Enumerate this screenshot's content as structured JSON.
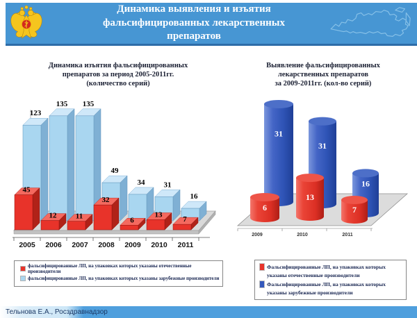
{
  "header": {
    "title_lines": [
      "Динамика выявления и изъятия",
      "фальсифицированных лекарственных",
      "препаратов"
    ],
    "emblem_icon": "roszdravnadzor-coat-of-arms",
    "map_icon": "russia-map-outline"
  },
  "footer": {
    "credit": "Тельнова Е.А., Росздравнадзор"
  },
  "colors": {
    "header_blue": "#4796d3",
    "header_underline": "#2d6ca8",
    "footer_blue": "#4f9fdd",
    "domestic_red": "#e8332a",
    "foreign_light_blue": "#a9d6f0",
    "foreign_dark_blue": "#3358bc"
  },
  "chart_data": [
    {
      "type": "bar",
      "style": "3d-column",
      "title": "Динамика изъятия фальсифицированных препаратов за период 2005-2011гг. (количество серий)",
      "title_lines": [
        "Динамика изъятия фальсифицированных",
        "препаратов за период 2005-2011гг.",
        "(количество серий)"
      ],
      "categories": [
        "2005",
        "2006",
        "2007",
        "2008",
        "2009",
        "2010",
        "2011"
      ],
      "series": [
        {
          "name": "фальсифицированные ЛП, на упаковках которых указаны отечественные производители",
          "color": "#e8332a",
          "values": [
            45,
            12,
            11,
            32,
            6,
            13,
            7
          ]
        },
        {
          "name": "фальсифицированные ЛП, на упаковках которых указаны зарубежные производители",
          "color": "#a9d6f0",
          "values": [
            123,
            135,
            135,
            49,
            34,
            31,
            16
          ]
        }
      ],
      "value_labels": true,
      "grid": false,
      "legend_position": "bottom",
      "ylim": [
        0,
        140
      ]
    },
    {
      "type": "bar",
      "style": "3d-cylinder",
      "title": "Выявление фальсифицированных лекарственных препаратов за 2009-2011гг. (кол-во серий)",
      "title_lines": [
        "Выявление фальсифицированных",
        "лекарственных препаратов",
        "за 2009-2011гг. (кол-во серий)"
      ],
      "categories": [
        "2009",
        "2010",
        "2011"
      ],
      "series": [
        {
          "name": "Фальсифицированные ЛП, на упаковках которых указаны отечественные производители",
          "color": "#e8332a",
          "values": [
            6,
            13,
            7
          ]
        },
        {
          "name": "Фальсифицированные ЛП, на упаковках которых указаны зарубежные производители",
          "color": "#3358bc",
          "values": [
            31,
            31,
            16
          ]
        }
      ],
      "value_labels": true,
      "grid": false,
      "legend_position": "bottom",
      "ylim": [
        0,
        35
      ]
    }
  ]
}
